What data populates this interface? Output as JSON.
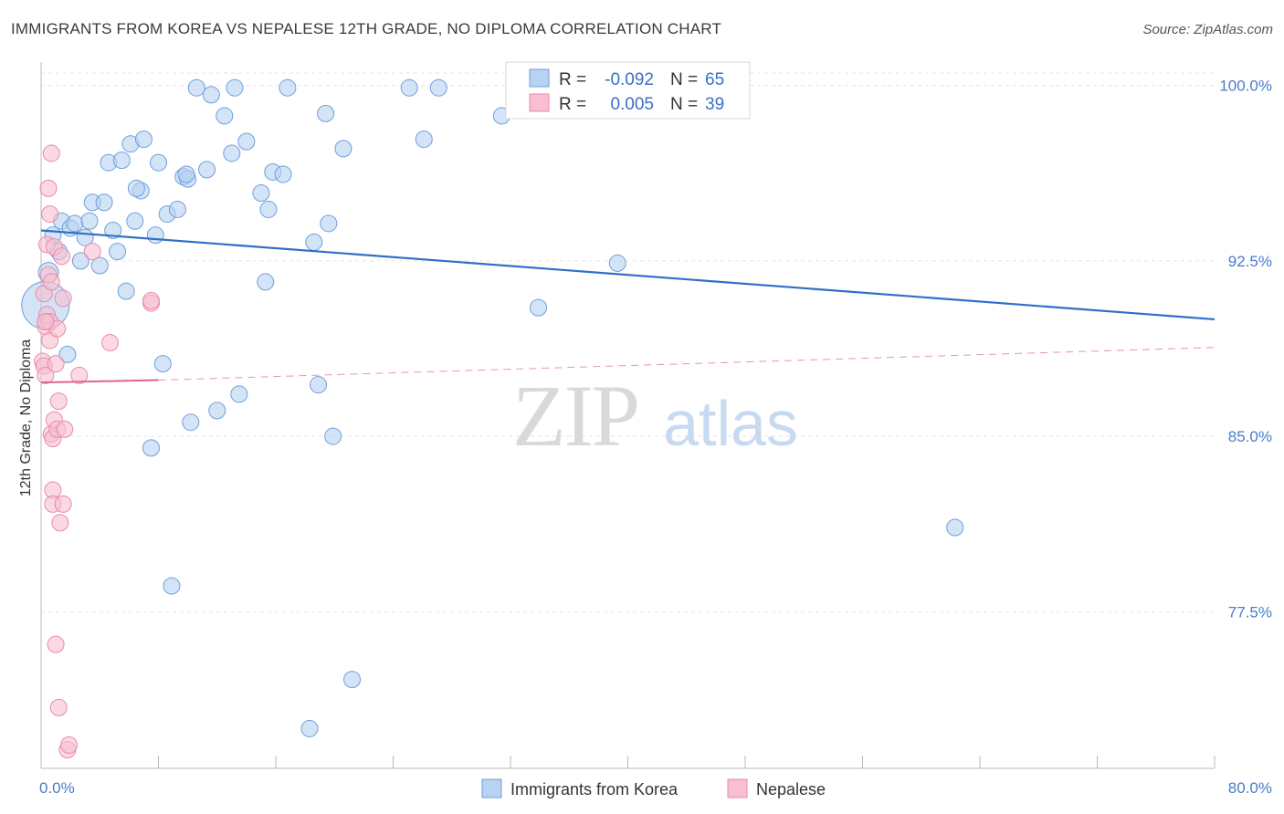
{
  "title": "IMMIGRANTS FROM KOREA VS NEPALESE 12TH GRADE, NO DIPLOMA CORRELATION CHART",
  "source": "Source: ZipAtlas.com",
  "watermark": {
    "zip": "ZIP",
    "atlas": "atlas"
  },
  "colors": {
    "korea_fill": "#b8d2f2",
    "korea_stroke": "#6e9fdc",
    "korea_line": "#2f6fc7",
    "nepal_fill": "#f7bfd0",
    "nepal_stroke": "#e98aa9",
    "nepal_line": "#e0658f",
    "grid": "#e4e4e4",
    "tick_text": "#4a7cc9"
  },
  "legend_box": {
    "rows": [
      {
        "r_label": "R =",
        "r_value": "-0.092",
        "n_label": "N =",
        "n_value": "65"
      },
      {
        "r_label": "R =",
        "r_value": "0.005",
        "n_label": "N =",
        "n_value": "39"
      }
    ]
  },
  "chart_data": {
    "type": "scatter",
    "title": "IMMIGRANTS FROM KOREA VS NEPALESE 12TH GRADE, NO DIPLOMA CORRELATION CHART",
    "xlabel": "",
    "ylabel": "12th Grade, No Diploma",
    "xlim": [
      0,
      80
    ],
    "ylim": [
      70.8,
      101.0
    ],
    "x_tick_labels": [
      "0.0%",
      "80.0%"
    ],
    "y_ticks": [
      100.0,
      92.5,
      85.0,
      77.5
    ],
    "y_tick_labels": [
      "100.0%",
      "92.5%",
      "85.0%",
      "77.5%"
    ],
    "x_minor_ticks": [
      0,
      8,
      16,
      24,
      32,
      40,
      48,
      56,
      64,
      72,
      80
    ],
    "series": [
      {
        "name": "Immigrants from Korea",
        "r": -0.092,
        "n": 65,
        "trend": {
          "x": [
            0,
            80
          ],
          "y": [
            93.8,
            90.0
          ],
          "style": "solid"
        },
        "points": [
          [
            0.3,
            90.6,
            26
          ],
          [
            0.5,
            92.0,
            11
          ],
          [
            0.8,
            93.6,
            9
          ],
          [
            1.2,
            92.9,
            9
          ],
          [
            1.4,
            94.2,
            9
          ],
          [
            1.8,
            88.5,
            9
          ],
          [
            2.0,
            93.9,
            9
          ],
          [
            2.3,
            94.1,
            9
          ],
          [
            2.7,
            92.5,
            9
          ],
          [
            3.0,
            93.5,
            9
          ],
          [
            3.3,
            94.2,
            9
          ],
          [
            3.5,
            95.0,
            9
          ],
          [
            4.0,
            92.3,
            9
          ],
          [
            4.3,
            95.0,
            9
          ],
          [
            4.6,
            96.7,
            9
          ],
          [
            4.9,
            93.8,
            9
          ],
          [
            5.2,
            92.9,
            9
          ],
          [
            5.5,
            96.8,
            9
          ],
          [
            5.8,
            91.2,
            9
          ],
          [
            6.1,
            97.5,
            9
          ],
          [
            6.4,
            94.2,
            9
          ],
          [
            6.8,
            95.5,
            9
          ],
          [
            7.0,
            97.7,
            9
          ],
          [
            7.5,
            84.5,
            9
          ],
          [
            7.8,
            93.6,
            9
          ],
          [
            8.0,
            96.7,
            9
          ],
          [
            8.3,
            88.1,
            9
          ],
          [
            8.6,
            94.5,
            9
          ],
          [
            8.9,
            78.6,
            9
          ],
          [
            9.3,
            94.7,
            9
          ],
          [
            9.7,
            96.1,
            9
          ],
          [
            10.2,
            85.6,
            9
          ],
          [
            10.6,
            99.9,
            9
          ],
          [
            11.3,
            96.4,
            9
          ],
          [
            11.6,
            99.6,
            9
          ],
          [
            12.0,
            86.1,
            9
          ],
          [
            12.5,
            98.7,
            9
          ],
          [
            13.0,
            97.1,
            9
          ],
          [
            13.2,
            99.9,
            9
          ],
          [
            13.5,
            86.8,
            9
          ],
          [
            14.0,
            97.6,
            9
          ],
          [
            15.0,
            95.4,
            9
          ],
          [
            15.3,
            91.6,
            9
          ],
          [
            15.5,
            94.7,
            9
          ],
          [
            15.8,
            96.3,
            9
          ],
          [
            16.5,
            96.2,
            9
          ],
          [
            16.8,
            99.9,
            9
          ],
          [
            18.3,
            72.5,
            9
          ],
          [
            18.6,
            93.3,
            9
          ],
          [
            18.9,
            87.2,
            9
          ],
          [
            19.4,
            98.8,
            9
          ],
          [
            19.6,
            94.1,
            9
          ],
          [
            19.9,
            85.0,
            9
          ],
          [
            20.6,
            97.3,
            9
          ],
          [
            21.2,
            74.6,
            9
          ],
          [
            25.1,
            99.9,
            9
          ],
          [
            26.1,
            97.7,
            9
          ],
          [
            27.1,
            99.9,
            9
          ],
          [
            31.4,
            98.7,
            9
          ],
          [
            33.9,
            90.5,
            9
          ],
          [
            39.3,
            92.4,
            9
          ],
          [
            62.3,
            81.1,
            9
          ],
          [
            10.0,
            96.0,
            9
          ],
          [
            6.5,
            95.6,
            9
          ],
          [
            9.9,
            96.2,
            9
          ]
        ]
      },
      {
        "name": "Nepalese",
        "r": 0.005,
        "n": 39,
        "trend": {
          "x": [
            0,
            8
          ],
          "y": [
            87.3,
            87.4
          ],
          "style": "solid",
          "dashed_extension": {
            "x": [
              8,
              80
            ],
            "y": [
              87.4,
              88.8
            ]
          }
        },
        "points": [
          [
            0.1,
            88.2,
            9
          ],
          [
            0.2,
            91.1,
            9
          ],
          [
            0.2,
            88.0,
            9
          ],
          [
            0.3,
            89.7,
            9
          ],
          [
            0.3,
            87.6,
            9
          ],
          [
            0.4,
            90.2,
            9
          ],
          [
            0.4,
            93.2,
            9
          ],
          [
            0.5,
            91.9,
            9
          ],
          [
            0.5,
            95.6,
            9
          ],
          [
            0.6,
            89.9,
            9
          ],
          [
            0.6,
            89.1,
            9
          ],
          [
            0.6,
            94.5,
            9
          ],
          [
            0.7,
            97.1,
            9
          ],
          [
            0.7,
            91.6,
            9
          ],
          [
            0.7,
            85.1,
            9
          ],
          [
            0.8,
            84.9,
            9
          ],
          [
            0.8,
            82.7,
            9
          ],
          [
            0.8,
            82.1,
            9
          ],
          [
            0.9,
            85.7,
            9
          ],
          [
            0.9,
            93.1,
            9
          ],
          [
            1.0,
            76.1,
            9
          ],
          [
            1.0,
            88.1,
            9
          ],
          [
            1.1,
            89.6,
            9
          ],
          [
            1.1,
            85.3,
            9
          ],
          [
            1.2,
            86.5,
            9
          ],
          [
            1.2,
            73.4,
            9
          ],
          [
            1.3,
            81.3,
            9
          ],
          [
            1.4,
            92.7,
            9
          ],
          [
            1.5,
            90.9,
            9
          ],
          [
            1.5,
            82.1,
            9
          ],
          [
            1.6,
            85.3,
            9
          ],
          [
            1.8,
            71.6,
            9
          ],
          [
            1.9,
            71.8,
            9
          ],
          [
            2.6,
            87.6,
            9
          ],
          [
            3.5,
            92.9,
            9
          ],
          [
            4.7,
            89.0,
            9
          ],
          [
            7.5,
            90.7,
            9
          ],
          [
            7.5,
            90.8,
            9
          ],
          [
            0.3,
            89.9,
            9
          ]
        ]
      }
    ],
    "legend": [
      "Immigrants from Korea",
      "Nepalese"
    ],
    "legend_position": "bottom-center"
  }
}
